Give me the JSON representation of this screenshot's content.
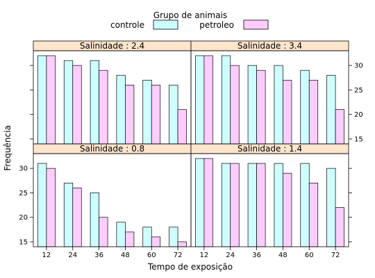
{
  "chart_data": {
    "type": "bar",
    "legend": {
      "title": "Grupo de animais",
      "position": "top",
      "entries": [
        {
          "name": "controle",
          "color": "#ccffff"
        },
        {
          "name": "petroleo",
          "color": "#ffccff"
        }
      ]
    },
    "xlabel": "Tempo de exposição",
    "ylabel": "Frequência",
    "categories": [
      "12",
      "24",
      "36",
      "48",
      "60",
      "72"
    ],
    "ylim": [
      14,
      33
    ],
    "yticks": [
      15,
      20,
      25,
      30
    ],
    "strip_color": "#ffe5cc",
    "panels": [
      {
        "strip": "Salinidade : 0.8",
        "row": 1,
        "col": 0,
        "series": [
          {
            "name": "controle",
            "values": [
              31,
              27,
              25,
              19,
              18,
              18
            ]
          },
          {
            "name": "petroleo",
            "values": [
              30,
              26,
              20,
              17,
              16,
              15
            ]
          }
        ]
      },
      {
        "strip": "Salinidade : 1.4",
        "row": 1,
        "col": 1,
        "series": [
          {
            "name": "controle",
            "values": [
              32,
              31,
              31,
              31,
              31,
              30
            ]
          },
          {
            "name": "petroleo",
            "values": [
              32,
              31,
              31,
              29,
              27,
              22
            ]
          }
        ]
      },
      {
        "strip": "Salinidade : 2.4",
        "row": 0,
        "col": 0,
        "series": [
          {
            "name": "controle",
            "values": [
              32,
              31,
              31,
              28,
              27,
              26
            ]
          },
          {
            "name": "petroleo",
            "values": [
              32,
              30,
              29,
              26,
              26,
              21
            ]
          }
        ]
      },
      {
        "strip": "Salinidade : 3.4",
        "row": 0,
        "col": 1,
        "series": [
          {
            "name": "controle",
            "values": [
              32,
              32,
              30,
              30,
              29,
              28
            ]
          },
          {
            "name": "petroleo",
            "values": [
              32,
              30,
              29,
              27,
              27,
              21
            ]
          }
        ]
      }
    ]
  }
}
